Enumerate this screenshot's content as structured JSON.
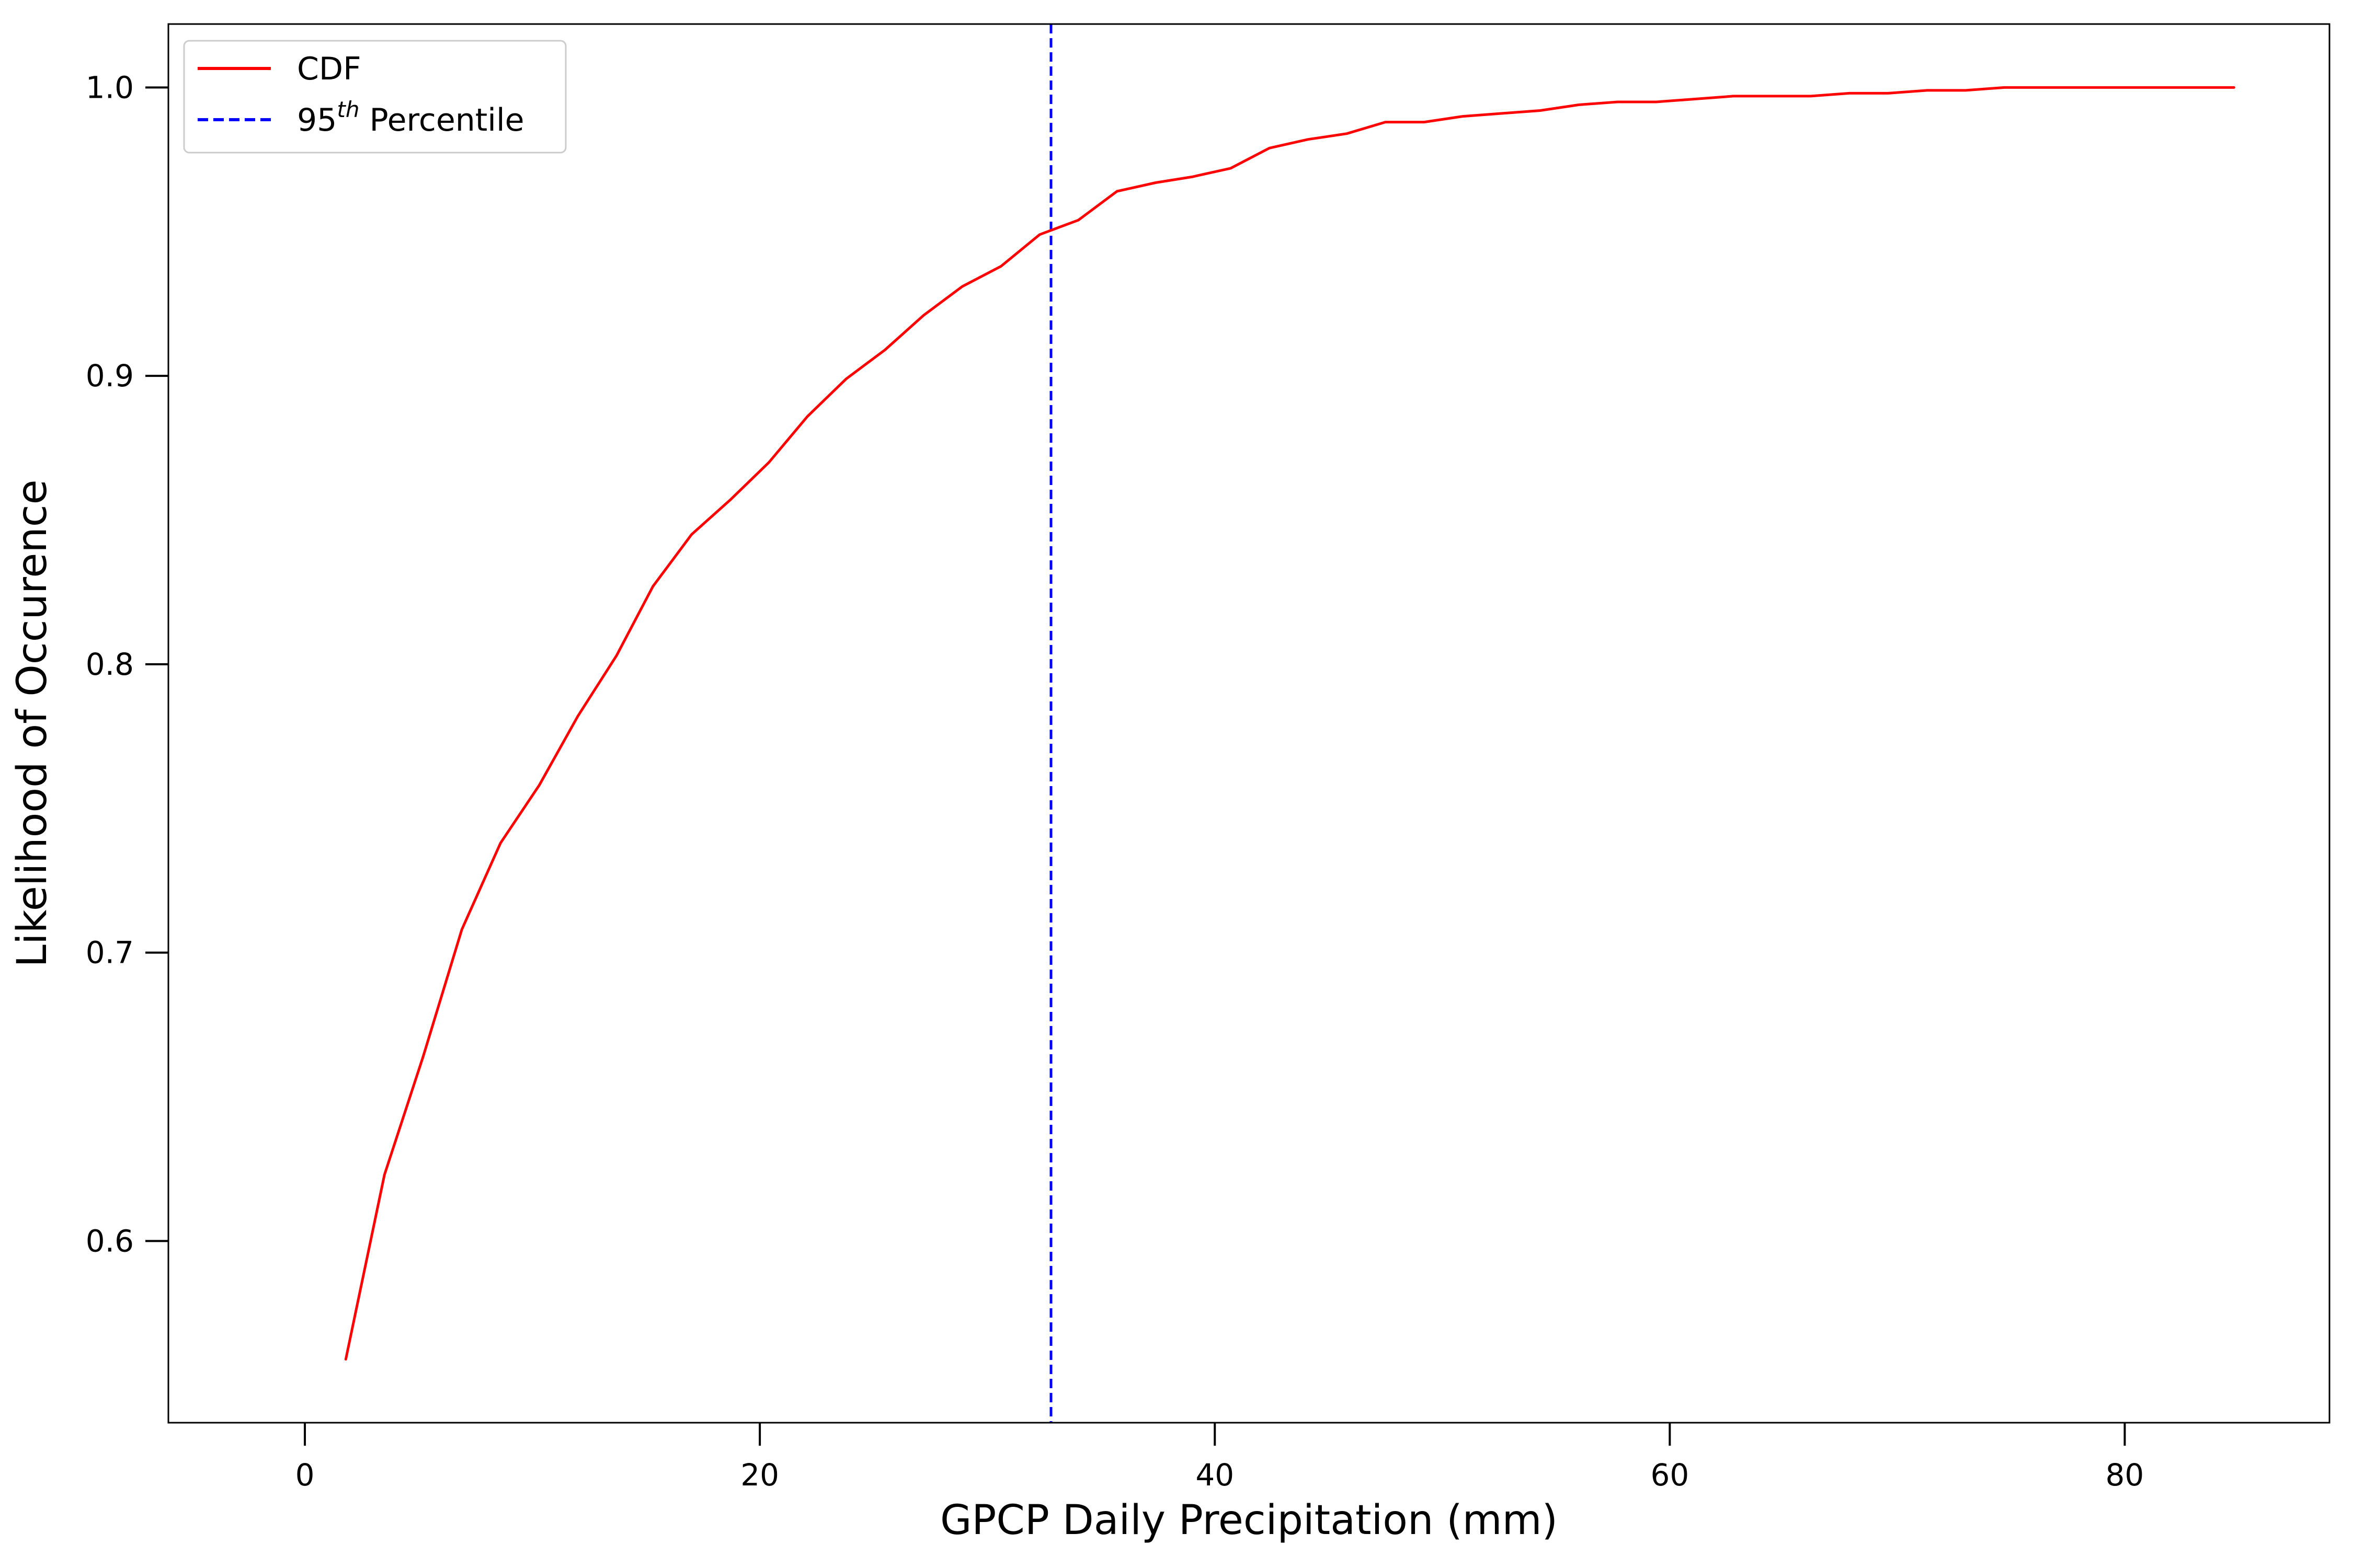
{
  "chart_data": {
    "type": "line",
    "xlabel": "GPCP Daily Precipitation (mm)",
    "ylabel": "Likelihood of Occurence",
    "xlim": [
      -6,
      89
    ],
    "ylim": [
      0.537,
      1.022
    ],
    "xticks": [
      0,
      20,
      40,
      60,
      80
    ],
    "xtick_labels": [
      "0",
      "20",
      "40",
      "60",
      "80"
    ],
    "yticks": [
      0.6,
      0.7,
      0.8,
      0.9,
      1.0
    ],
    "ytick_labels": [
      "0.6",
      "0.7",
      "0.8",
      "0.9",
      "1.0"
    ],
    "grid": false,
    "legend": {
      "position": "upper-left",
      "entries": [
        {
          "label": "CDF",
          "style": "solid",
          "color": "#ff0000"
        },
        {
          "label_base": "95",
          "label_sup": "th",
          "label_rest": " Percentile",
          "style": "dashed",
          "color": "#0000ff"
        }
      ]
    },
    "series": [
      {
        "name": "CDF",
        "color": "#ff0000",
        "x": [
          1.8,
          3.5,
          5.2,
          6.9,
          8.6,
          10.3,
          12.0,
          13.7,
          15.3,
          17.0,
          18.7,
          20.4,
          22.1,
          23.8,
          25.5,
          27.2,
          28.9,
          30.6,
          32.3,
          34.0,
          35.7,
          37.4,
          39.0,
          40.7,
          42.4,
          44.1,
          45.8,
          47.5,
          49.2,
          50.9,
          52.6,
          54.3,
          56.0,
          57.7,
          59.4,
          61.1,
          62.8,
          64.5,
          66.2,
          67.9,
          69.6,
          71.3,
          73.0,
          74.7,
          76.4,
          78.1,
          79.8,
          81.5,
          83.2,
          84.8
        ],
        "y": [
          0.559,
          0.623,
          0.664,
          0.708,
          0.738,
          0.758,
          0.782,
          0.803,
          0.827,
          0.845,
          0.857,
          0.87,
          0.886,
          0.899,
          0.909,
          0.921,
          0.931,
          0.938,
          0.949,
          0.954,
          0.964,
          0.967,
          0.969,
          0.972,
          0.979,
          0.982,
          0.984,
          0.988,
          0.988,
          0.99,
          0.991,
          0.992,
          0.994,
          0.995,
          0.995,
          0.996,
          0.997,
          0.997,
          0.997,
          0.998,
          0.998,
          0.999,
          0.999,
          1.0,
          1.0,
          1.0,
          1.0,
          1.0,
          1.0,
          1.0
        ]
      }
    ],
    "vlines": [
      {
        "name": "95th Percentile",
        "x": 32.8,
        "color": "#0000ff",
        "style": "dashed"
      }
    ]
  }
}
